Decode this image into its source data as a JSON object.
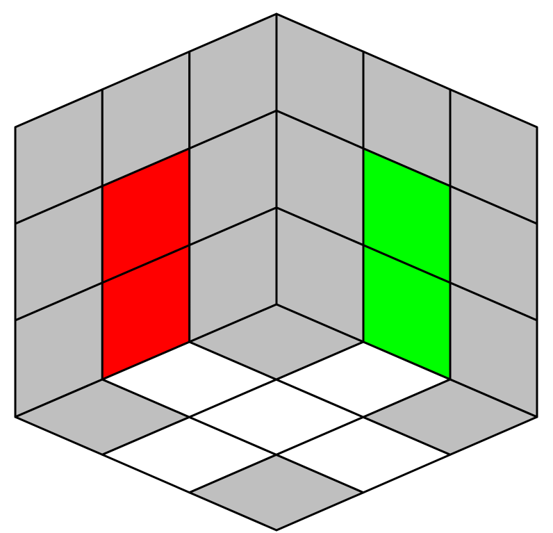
{
  "colors": {
    "gray": "#bfbfbf",
    "red": "#ff0000",
    "green": "#00ff00",
    "white": "#ffffff",
    "outline": "#000000"
  },
  "faces": {
    "left": [
      [
        "gray",
        "gray",
        "gray"
      ],
      [
        "gray",
        "red",
        "gray"
      ],
      [
        "gray",
        "red",
        "gray"
      ]
    ],
    "right": [
      [
        "gray",
        "gray",
        "gray"
      ],
      [
        "gray",
        "green",
        "gray"
      ],
      [
        "gray",
        "green",
        "gray"
      ]
    ],
    "bottom": [
      [
        "gray",
        "white",
        "gray"
      ],
      [
        "white",
        "white",
        "white"
      ],
      [
        "gray",
        "white",
        "gray"
      ]
    ]
  }
}
